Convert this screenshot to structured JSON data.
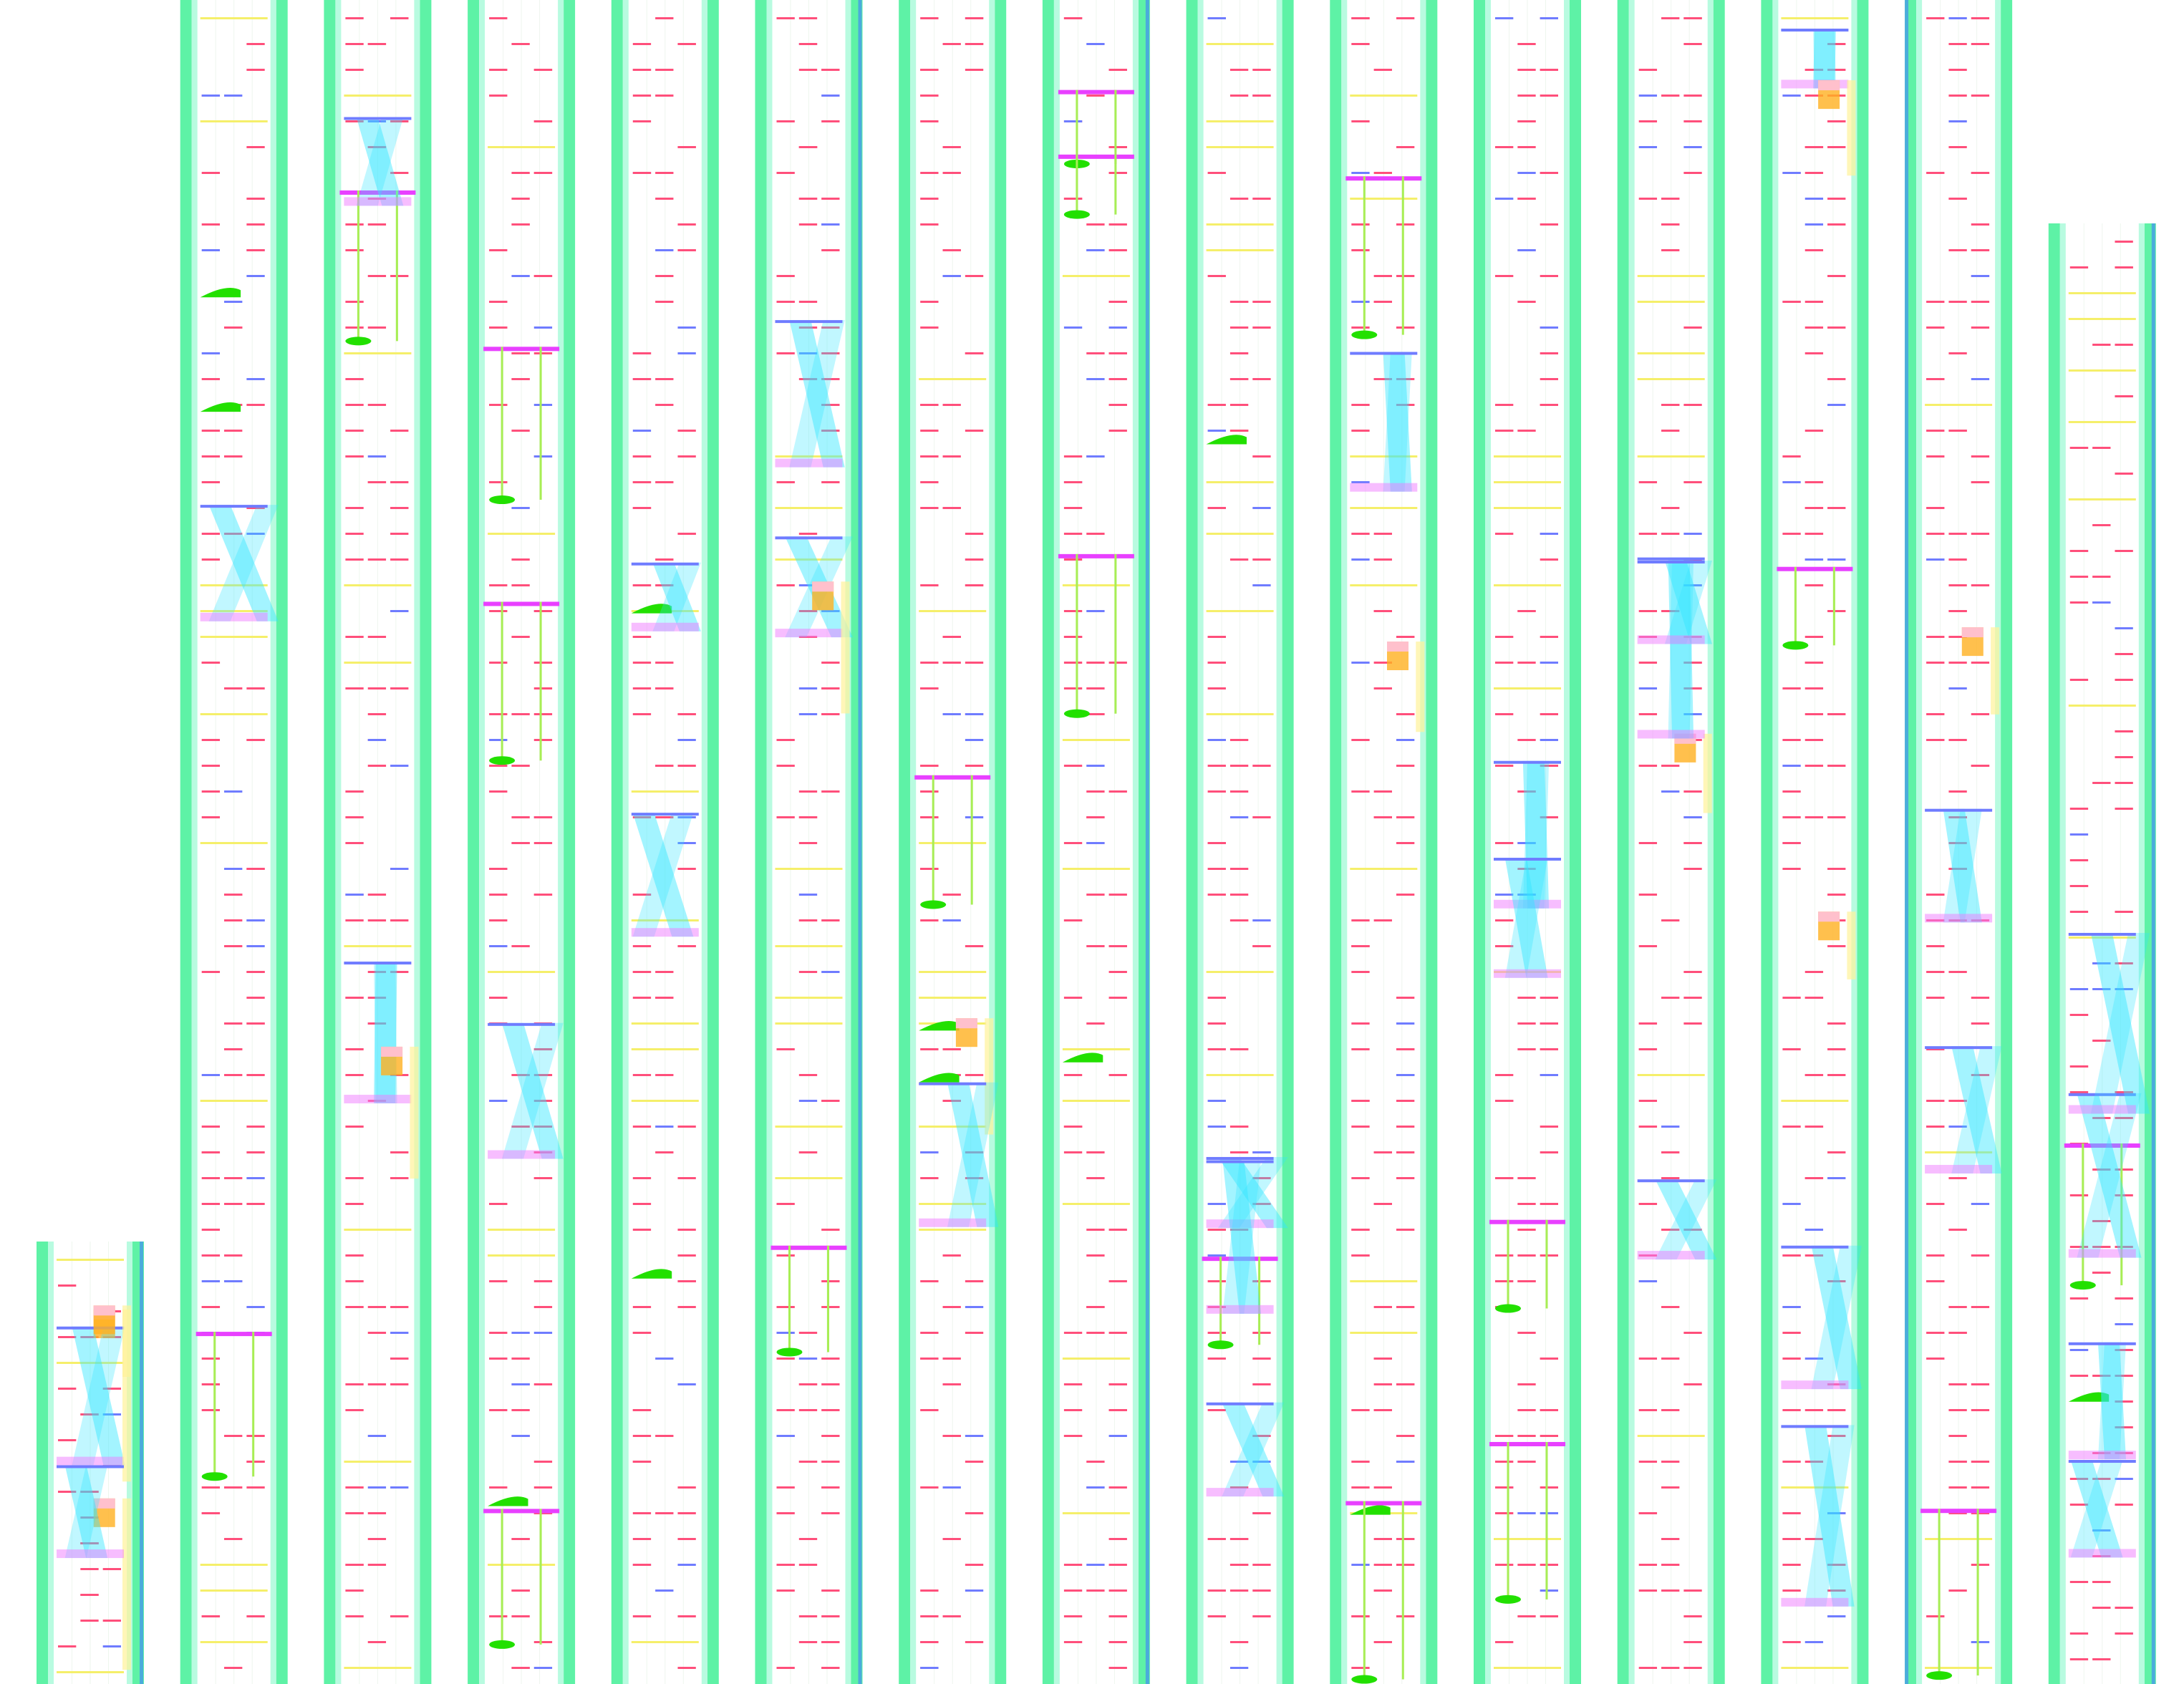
{
  "colors": {
    "background": "#ffffff",
    "rail": "#5ef2a6",
    "rail_inner": "#b8fbe0",
    "rail_tick": "#3f7dff",
    "dash": "#ff4f7b",
    "dash_alt": "#f5ef6a",
    "ribbon": "#33e6ff",
    "ribbon_accent": "#f07cff",
    "bar": "#e840ff",
    "bar_blue": "#6f7cff",
    "blob": "#22e000",
    "connector": "#a8ee55",
    "block_orange": "#ffb020",
    "block_pink": "#ffc0cc",
    "block_yellow": "#fff29a"
  },
  "column_count": 15
}
